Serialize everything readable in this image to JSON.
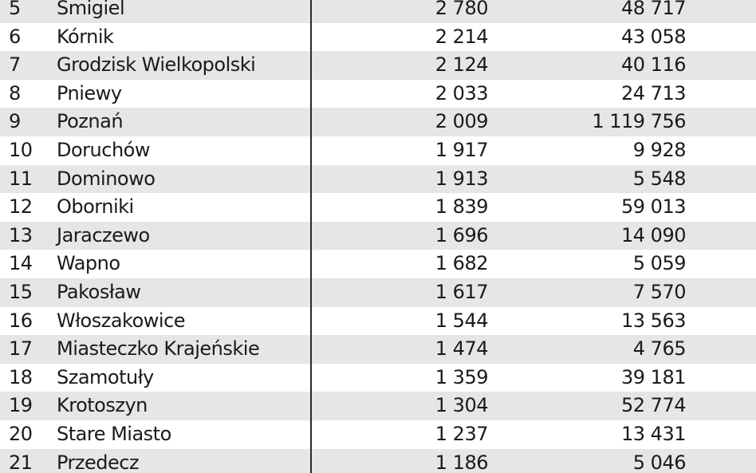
{
  "table": {
    "rows": [
      {
        "rank": "5",
        "name": "Śmigiel",
        "value": "2 780",
        "population": "48 717"
      },
      {
        "rank": "6",
        "name": "Kórnik",
        "value": "2 214",
        "population": "43 058"
      },
      {
        "rank": "7",
        "name": "Grodzisk Wielkopolski",
        "value": "2 124",
        "population": "40 116"
      },
      {
        "rank": "8",
        "name": "Pniewy",
        "value": "2 033",
        "population": "24 713"
      },
      {
        "rank": "9",
        "name": "Poznań",
        "value": "2 009",
        "population": "1 119 756"
      },
      {
        "rank": "10",
        "name": "Doruchów",
        "value": "1 917",
        "population": "9 928"
      },
      {
        "rank": "11",
        "name": "Dominowo",
        "value": "1 913",
        "population": "5 548"
      },
      {
        "rank": "12",
        "name": "Oborniki",
        "value": "1 839",
        "population": "59 013"
      },
      {
        "rank": "13",
        "name": "Jaraczewo",
        "value": "1 696",
        "population": "14 090"
      },
      {
        "rank": "14",
        "name": "Wapno",
        "value": "1 682",
        "population": "5 059"
      },
      {
        "rank": "15",
        "name": "Pakosław",
        "value": "1 617",
        "population": "7 570"
      },
      {
        "rank": "16",
        "name": "Włoszakowice",
        "value": "1 544",
        "population": "13 563"
      },
      {
        "rank": "17",
        "name": "Miasteczko Krajeńskie",
        "value": "1 474",
        "population": "4 765"
      },
      {
        "rank": "18",
        "name": "Szamotuły",
        "value": "1 359",
        "population": "39 181"
      },
      {
        "rank": "19",
        "name": "Krotoszyn",
        "value": "1 304",
        "population": "52 774"
      },
      {
        "rank": "20",
        "name": "Stare Miasto",
        "value": "1 237",
        "population": "13 431"
      },
      {
        "rank": "21",
        "name": "Przedecz",
        "value": "1 186",
        "population": "5 046"
      }
    ]
  },
  "colors": {
    "stripe": "#e6e6e6",
    "text": "#1a1a1a",
    "divider": "#2a2a2a"
  }
}
